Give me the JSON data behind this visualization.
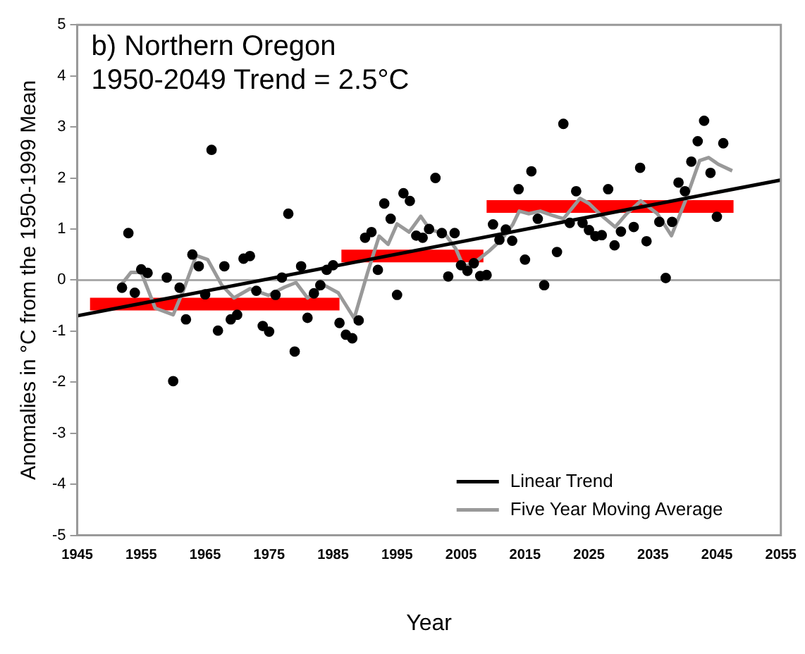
{
  "chart_data": {
    "type": "scatter",
    "title": "b) Northern Oregon",
    "subtitle": "1950-2049 Trend = 2.5°C",
    "xlabel": "Year",
    "ylabel": "Anomalies in °C from the 1950-1999 Mean",
    "xlim": [
      1945,
      2055
    ],
    "xticks": [
      1945,
      1955,
      1965,
      1975,
      1985,
      1995,
      2005,
      2015,
      2025,
      2035,
      2045,
      {
        "value": 2055,
        "label": "2055"
      }
    ],
    "ylim": [
      -5,
      5
    ],
    "yticks": [
      -5,
      -4,
      -3,
      -2,
      -1,
      0,
      1,
      2,
      3,
      4,
      5
    ],
    "grid": false,
    "legend": "bottom right",
    "marker": "circle",
    "ref_lines": [
      {
        "axis": "y",
        "value": 0,
        "color": "#aaaaaa"
      }
    ],
    "series": [
      {
        "color": "#000000",
        "x": [
          1952,
          1953,
          1954,
          1955,
          1956,
          1959,
          1960,
          1961,
          1962,
          1963,
          1964,
          1965,
          1966,
          1967,
          1968,
          1969,
          1970,
          1971,
          1972,
          1973,
          1974,
          1975,
          1976,
          1977,
          1978,
          1979,
          1980,
          1981,
          1982,
          1983,
          1984,
          1985,
          1986,
          1987,
          1988,
          1989,
          1990,
          1991,
          1992,
          1993,
          1994,
          1995,
          1996,
          1997,
          1998,
          1999,
          2000,
          2001,
          2002,
          2003,
          2004,
          2005,
          2006,
          2007,
          2008,
          2009,
          2010,
          2011,
          2012,
          2013,
          2014,
          2015,
          2016,
          2017,
          2018,
          2020,
          2021,
          2022,
          2023,
          2024,
          2025,
          2026,
          2027,
          2028,
          2029,
          2030,
          2032,
          2033,
          2034,
          2036,
          2037,
          2038,
          2039,
          2040,
          2041,
          2042,
          2043,
          2044,
          2045,
          2046
        ],
        "values": [
          -0.15,
          0.92,
          -0.25,
          0.21,
          0.14,
          0.05,
          -1.98,
          -0.15,
          -0.77,
          0.5,
          0.27,
          -0.28,
          2.55,
          -0.99,
          0.27,
          -0.77,
          -0.68,
          0.42,
          0.47,
          -0.21,
          -0.9,
          -1.01,
          -0.29,
          0.05,
          1.3,
          -1.4,
          0.27,
          -0.74,
          -0.26,
          -0.1,
          0.2,
          0.29,
          -0.84,
          -1.07,
          -1.14,
          -0.79,
          0.83,
          0.94,
          0.2,
          1.5,
          1.2,
          -0.29,
          1.7,
          1.55,
          0.87,
          0.83,
          1.0,
          2.0,
          0.92,
          0.07,
          0.92,
          0.29,
          0.18,
          0.33,
          0.08,
          0.1,
          1.09,
          0.79,
          0.99,
          0.77,
          1.78,
          0.4,
          2.13,
          1.2,
          -0.1,
          0.55,
          3.06,
          1.12,
          1.74,
          1.12,
          0.98,
          0.86,
          0.88,
          1.78,
          0.68,
          0.95,
          1.04,
          2.2,
          0.76,
          1.14,
          0.04,
          1.14,
          1.91,
          1.74,
          2.32,
          2.72,
          3.12,
          2.1,
          1.24,
          2.68
        ]
      },
      {
        "type": "line",
        "name": "Linear Trend",
        "color": "#000000",
        "marker": "none",
        "x": [
          1945,
          2055
        ],
        "values": [
          -0.7,
          1.96
        ]
      },
      {
        "type": "line",
        "name": "Five Year Moving Average",
        "color": "#999999",
        "marker": "none",
        "x": [
          1951.7,
          1953.4,
          1955,
          1957.2,
          1960,
          1961.6,
          1963.6,
          1965.4,
          1967.6,
          1969.5,
          1972,
          1974.9,
          1977.4,
          1979.2,
          1981,
          1983.6,
          1985.8,
          1988.3,
          1990.4,
          1992.2,
          1993.6,
          1995,
          1996.9,
          1998.7,
          2000.2,
          2002.4,
          2004.2,
          2005.4,
          2007.2,
          2009.4,
          2011.3,
          2013.1,
          2014.1,
          2015.6,
          2017.4,
          2019.2,
          2021,
          2023.6,
          2025,
          2026.9,
          2029.1,
          2030.9,
          2033.1,
          2035.7,
          2037.9,
          2040.1,
          2042.3,
          2043.7,
          2045.2,
          2047.4
        ],
        "values": [
          -0.12,
          0.15,
          0.15,
          -0.55,
          -0.68,
          -0.2,
          0.48,
          0.4,
          -0.1,
          -0.35,
          -0.17,
          -0.3,
          -0.14,
          -0.05,
          -0.35,
          -0.1,
          -0.25,
          -0.75,
          0.15,
          0.86,
          0.7,
          1.1,
          0.94,
          1.25,
          0.98,
          0.92,
          0.61,
          0.26,
          0.35,
          0.57,
          0.79,
          1.09,
          1.35,
          1.3,
          1.35,
          1.27,
          1.2,
          1.6,
          1.5,
          1.27,
          1.04,
          1.3,
          1.55,
          1.3,
          0.87,
          1.56,
          2.34,
          2.4,
          2.27,
          2.14
        ]
      },
      {
        "type": "line",
        "color": "#ff0000",
        "marker": "none",
        "x": [
          1947,
          1986
        ],
        "values": [
          -0.47,
          -0.47
        ]
      },
      {
        "type": "line",
        "color": "#ff0000",
        "marker": "none",
        "x": [
          1986.3,
          2008.5
        ],
        "values": [
          0.47,
          0.47
        ]
      },
      {
        "type": "line",
        "color": "#ff0000",
        "marker": "none",
        "x": [
          2009,
          2047.6
        ],
        "values": [
          1.44,
          1.44
        ]
      }
    ]
  }
}
